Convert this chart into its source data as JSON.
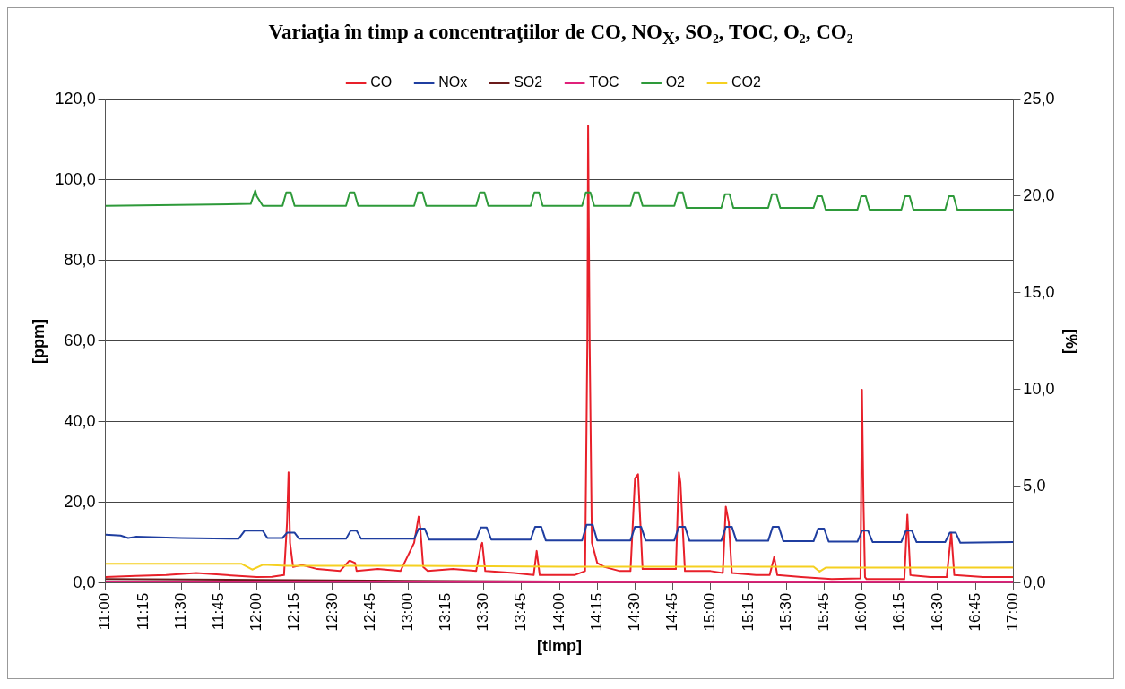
{
  "chart_data": {
    "type": "line",
    "title": "Variaţia  în timp a concentraţiilor de  CO, NO$_{X}$, SO₂, TOC, O₂, CO₂",
    "xlabel": "[timp]",
    "ylabel": "[ppm]",
    "y2label": "[%]",
    "xlim": [
      11,
      17
    ],
    "xticks": [
      {
        "value": 11,
        "label": "11:00"
      },
      {
        "value": 11.25,
        "label": "11:15"
      },
      {
        "value": 11.5,
        "label": "11:30"
      },
      {
        "value": 11.75,
        "label": "11:45"
      },
      {
        "value": 12,
        "label": "12:00"
      },
      {
        "value": 12.25,
        "label": "12:15"
      },
      {
        "value": 12.5,
        "label": "12:30"
      },
      {
        "value": 12.75,
        "label": "12:45"
      },
      {
        "value": 13,
        "label": "13:00"
      },
      {
        "value": 13.25,
        "label": "13:15"
      },
      {
        "value": 13.5,
        "label": "13:30"
      },
      {
        "value": 13.75,
        "label": "13:45"
      },
      {
        "value": 14,
        "label": "14:00"
      },
      {
        "value": 14.25,
        "label": "14:15"
      },
      {
        "value": 14.5,
        "label": "14:30"
      },
      {
        "value": 14.75,
        "label": "14:45"
      },
      {
        "value": 15,
        "label": "15:00"
      },
      {
        "value": 15.25,
        "label": "15:15"
      },
      {
        "value": 15.5,
        "label": "15:30"
      },
      {
        "value": 15.75,
        "label": "15:45"
      },
      {
        "value": 16,
        "label": "16:00"
      },
      {
        "value": 16.25,
        "label": "16:15"
      },
      {
        "value": 16.5,
        "label": "16:30"
      },
      {
        "value": 16.75,
        "label": "16:45"
      },
      {
        "value": 17,
        "label": "17:00"
      }
    ],
    "ylim": [
      0,
      120
    ],
    "yticks": [
      {
        "value": 0,
        "label": "0,0"
      },
      {
        "value": 20,
        "label": "20,0"
      },
      {
        "value": 40,
        "label": "40,0"
      },
      {
        "value": 60,
        "label": "60,0"
      },
      {
        "value": 80,
        "label": "80,0"
      },
      {
        "value": 100,
        "label": "100,0"
      },
      {
        "value": 120,
        "label": "120,0"
      }
    ],
    "y2lim": [
      0,
      25
    ],
    "y2ticks": [
      {
        "value": 0,
        "label": "0,0"
      },
      {
        "value": 5,
        "label": "5,0"
      },
      {
        "value": 10,
        "label": "10,0"
      },
      {
        "value": 15,
        "label": "15,0"
      },
      {
        "value": 20,
        "label": "20,0"
      },
      {
        "value": 25,
        "label": "25,0"
      }
    ],
    "grid": "y",
    "legend": "top",
    "marker": "none",
    "line_style": "solid",
    "series": [
      {
        "name": "CO",
        "color": "#e8202a",
        "x": [
          11,
          11.2,
          11.4,
          11.6,
          11.8,
          12.0,
          12.1,
          12.18,
          12.2,
          12.21,
          12.22,
          12.24,
          12.3,
          12.4,
          12.55,
          12.61,
          12.62,
          12.65,
          12.66,
          12.8,
          12.95,
          13.04,
          13.07,
          13.08,
          13.1,
          13.13,
          13.3,
          13.45,
          13.48,
          13.49,
          13.51,
          13.7,
          13.83,
          13.85,
          13.87,
          14.1,
          14.17,
          14.185,
          14.19,
          14.2,
          14.215,
          14.25,
          14.3,
          14.4,
          14.47,
          14.5,
          14.52,
          14.55,
          14.7,
          14.77,
          14.79,
          14.8,
          14.83,
          15.0,
          15.08,
          15.1,
          15.12,
          15.14,
          15.3,
          15.39,
          15.42,
          15.44,
          15.6,
          15.8,
          15.99,
          16.0,
          16.01,
          16.02,
          16.03,
          16.2,
          16.28,
          16.3,
          16.32,
          16.45,
          16.56,
          16.59,
          16.61,
          16.8,
          17
        ],
        "values": [
          1.5,
          1.8,
          2.0,
          2.5,
          2.0,
          1.5,
          1.6,
          2.0,
          15.0,
          27.5,
          10.0,
          4.0,
          4.5,
          3.5,
          3.0,
          5.5,
          5.5,
          5.0,
          3.0,
          3.5,
          3.0,
          10.0,
          16.5,
          14.0,
          4.0,
          3.0,
          3.5,
          3.0,
          9.0,
          10.0,
          3.0,
          2.5,
          2.0,
          8.0,
          2.0,
          2.0,
          3.0,
          60.0,
          113.5,
          60.0,
          10.0,
          5.0,
          4.0,
          3.0,
          3.0,
          26.0,
          27.0,
          3.5,
          3.5,
          3.5,
          27.5,
          25.0,
          3.0,
          3.0,
          2.5,
          19.0,
          15.0,
          2.5,
          2.0,
          2.0,
          6.5,
          2.0,
          1.5,
          1.0,
          1.2,
          48.0,
          20.0,
          1.5,
          1.0,
          1.0,
          1.0,
          17.0,
          2.0,
          1.5,
          1.5,
          12.5,
          2.0,
          1.5,
          1.5
        ]
      },
      {
        "name": "NOx",
        "color": "#1f3ea0",
        "x": [
          11,
          11.1,
          11.15,
          11.2,
          11.5,
          11.88,
          11.92,
          12.04,
          12.07,
          12.17,
          12.2,
          12.25,
          12.28,
          12.59,
          12.62,
          12.66,
          12.69,
          13.04,
          13.07,
          13.11,
          13.14,
          13.45,
          13.48,
          13.52,
          13.55,
          13.81,
          13.84,
          13.88,
          13.91,
          14.15,
          14.18,
          14.22,
          14.25,
          14.47,
          14.5,
          14.54,
          14.57,
          14.76,
          14.79,
          14.83,
          14.86,
          15.07,
          15.1,
          15.14,
          15.17,
          15.38,
          15.41,
          15.45,
          15.48,
          15.68,
          15.71,
          15.75,
          15.78,
          15.97,
          16.0,
          16.04,
          16.07,
          16.26,
          16.29,
          16.33,
          16.36,
          16.55,
          16.58,
          16.62,
          16.65,
          17
        ],
        "values": [
          12.0,
          11.8,
          11.2,
          11.5,
          11.2,
          11.0,
          13.0,
          13.0,
          11.2,
          11.2,
          12.5,
          12.5,
          11.0,
          11.0,
          13.0,
          13.0,
          11.0,
          11.0,
          13.5,
          13.5,
          10.8,
          10.8,
          13.8,
          13.8,
          10.8,
          10.8,
          14.0,
          14.0,
          10.6,
          10.6,
          14.5,
          14.5,
          10.6,
          10.6,
          14.0,
          14.0,
          10.6,
          10.6,
          14.0,
          14.0,
          10.5,
          10.5,
          14.0,
          14.0,
          10.5,
          10.5,
          14.0,
          14.0,
          10.4,
          10.4,
          13.5,
          13.5,
          10.3,
          10.3,
          13.0,
          13.0,
          10.2,
          10.2,
          13.0,
          13.0,
          10.2,
          10.2,
          12.5,
          12.5,
          10.0,
          10.2
        ]
      },
      {
        "name": "SO2",
        "color": "#6b1a1a",
        "x": [
          11,
          12,
          13,
          14,
          15,
          16,
          17
        ],
        "values": [
          1.0,
          0.8,
          0.6,
          0.4,
          0.3,
          0.3,
          0.4
        ]
      },
      {
        "name": "TOC",
        "color": "#e0207a",
        "x": [
          11,
          12,
          13,
          14,
          15,
          16,
          17
        ],
        "values": [
          0.4,
          0.3,
          0.3,
          0.2,
          0.2,
          0.2,
          0.2
        ]
      },
      {
        "name": "O2",
        "color": "#2e9a3a",
        "axis": "y2",
        "x": [
          11,
          11.96,
          11.99,
          12.0,
          12.04,
          12.17,
          12.195,
          12.225,
          12.25,
          12.59,
          12.615,
          12.645,
          12.67,
          13.04,
          13.065,
          13.095,
          13.12,
          13.45,
          13.475,
          13.505,
          13.53,
          13.81,
          13.835,
          13.865,
          13.89,
          14.15,
          14.175,
          14.205,
          14.23,
          14.47,
          14.495,
          14.525,
          14.55,
          14.76,
          14.785,
          14.815,
          14.84,
          15.07,
          15.095,
          15.125,
          15.15,
          15.38,
          15.405,
          15.435,
          15.46,
          15.68,
          15.705,
          15.735,
          15.76,
          15.97,
          15.995,
          16.025,
          16.05,
          16.26,
          16.285,
          16.315,
          16.34,
          16.55,
          16.575,
          16.605,
          16.63,
          17
        ],
        "values": [
          19.5,
          19.6,
          20.3,
          20.0,
          19.5,
          19.5,
          20.2,
          20.2,
          19.5,
          19.5,
          20.2,
          20.2,
          19.5,
          19.5,
          20.2,
          20.2,
          19.5,
          19.5,
          20.2,
          20.2,
          19.5,
          19.5,
          20.2,
          20.2,
          19.5,
          19.5,
          20.2,
          20.2,
          19.5,
          19.5,
          20.2,
          20.2,
          19.5,
          19.5,
          20.2,
          20.2,
          19.4,
          19.4,
          20.1,
          20.1,
          19.4,
          19.4,
          20.1,
          20.1,
          19.4,
          19.4,
          20.0,
          20.0,
          19.3,
          19.3,
          20.0,
          20.0,
          19.3,
          19.3,
          20.0,
          20.0,
          19.3,
          19.3,
          20.0,
          20.0,
          19.3,
          19.3
        ]
      },
      {
        "name": "CO2",
        "color": "#f5d020",
        "axis": "y2",
        "x": [
          11,
          11.9,
          11.97,
          12.04,
          12.2,
          13.0,
          14.0,
          15.0,
          15.68,
          15.72,
          15.76,
          16.5,
          17
        ],
        "values": [
          1.0,
          1.0,
          0.7,
          0.95,
          0.9,
          0.9,
          0.85,
          0.85,
          0.85,
          0.6,
          0.8,
          0.8,
          0.8
        ]
      }
    ]
  }
}
